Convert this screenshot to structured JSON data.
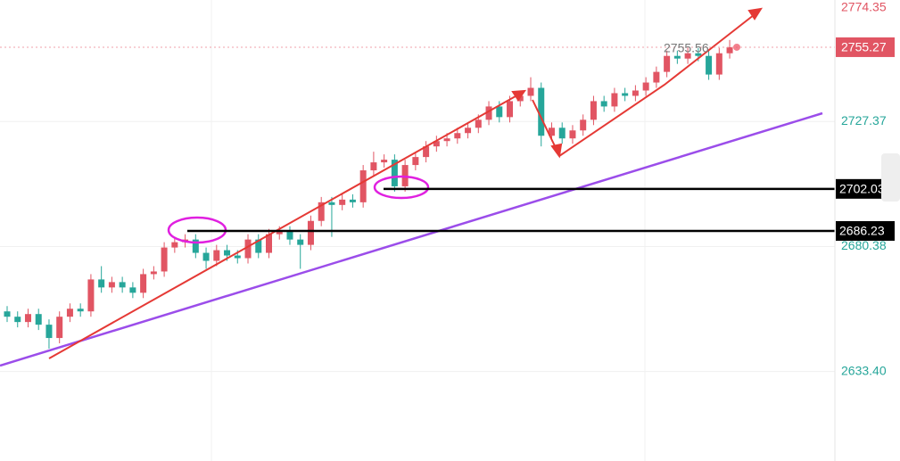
{
  "chart_data": {
    "type": "candlestick",
    "open": [
      2656,
      2654,
      2652,
      2655,
      2651,
      2646,
      2654,
      2657,
      2656,
      2668,
      2665,
      2667,
      2665,
      2663,
      2670,
      2671,
      2680,
      2682,
      2683,
      2678,
      2675,
      2679,
      2677,
      2676,
      2683,
      2678,
      2685,
      2686,
      2683,
      2681,
      2690,
      2697,
      2696,
      2698,
      2697,
      2709,
      2712,
      2713,
      2703,
      2711,
      2714,
      2718,
      2720,
      2721,
      2723,
      2725,
      2728,
      2733,
      2729,
      2735,
      2737,
      2740,
      2722,
      2725,
      2721,
      2724,
      2728,
      2735,
      2733,
      2738,
      2737,
      2739,
      2742,
      2746,
      2752,
      2751,
      2753,
      2752,
      2745,
      2753
    ],
    "high": [
      2658,
      2656,
      2657,
      2657,
      2653,
      2656,
      2659,
      2659,
      2670,
      2673,
      2669,
      2669,
      2667,
      2672,
      2673,
      2682,
      2684,
      2685,
      2685,
      2680,
      2681,
      2681,
      2679,
      2685,
      2685,
      2687,
      2688,
      2688,
      2685,
      2692,
      2699,
      2699,
      2700,
      2700,
      2711,
      2716,
      2715,
      2715,
      2713,
      2716,
      2720,
      2722,
      2723,
      2725,
      2727,
      2730,
      2735,
      2735,
      2737,
      2739,
      2744,
      2742,
      2727,
      2727,
      2726,
      2730,
      2737,
      2737,
      2740,
      2740,
      2741,
      2744,
      2748,
      2754,
      2754,
      2755,
      2755,
      2754,
      2755,
      2758
    ],
    "low": [
      2652,
      2650,
      2650,
      2649,
      2642,
      2644,
      2652,
      2654,
      2654,
      2663,
      2663,
      2663,
      2661,
      2661,
      2668,
      2669,
      2678,
      2680,
      2676,
      2672,
      2673,
      2675,
      2674,
      2674,
      2676,
      2676,
      2683,
      2681,
      2672,
      2679,
      2688,
      2684,
      2694,
      2695,
      2695,
      2707,
      2710,
      2701,
      2701,
      2709,
      2712,
      2716,
      2718,
      2719,
      2721,
      2723,
      2726,
      2727,
      2727,
      2733,
      2735,
      2718,
      2720,
      2719,
      2719,
      2722,
      2726,
      2731,
      2731,
      2735,
      2735,
      2737,
      2740,
      2744,
      2749,
      2749,
      2750,
      2743,
      2743,
      2751
    ],
    "close": [
      2654,
      2652,
      2655,
      2651,
      2646,
      2654,
      2657,
      2656,
      2668,
      2665,
      2667,
      2665,
      2663,
      2670,
      2671,
      2680,
      2682,
      2683,
      2678,
      2675,
      2679,
      2677,
      2676,
      2683,
      2678,
      2685,
      2686,
      2683,
      2681,
      2690,
      2697,
      2696,
      2698,
      2697,
      2709,
      2712,
      2713,
      2703,
      2711,
      2714,
      2718,
      2720,
      2721,
      2723,
      2725,
      2728,
      2733,
      2729,
      2735,
      2737,
      2740,
      2722,
      2725,
      2721,
      2724,
      2728,
      2735,
      2733,
      2738,
      2737,
      2739,
      2742,
      2746,
      2752,
      2751,
      2753,
      2752,
      2745,
      2753,
      2755.27
    ],
    "up_color": "#e15563",
    "down_color": "#26a69a",
    "ylim": [
      2599.78,
      2774.35
    ],
    "yticks": [
      {
        "value": 2633.4,
        "label": "2633.40"
      },
      {
        "value": 2680.38,
        "label": "2680.38"
      },
      {
        "value": 2727.37,
        "label": "2727.37"
      },
      {
        "value": 2774.35,
        "label": "2774.35"
      }
    ],
    "levels": [
      2702.03,
      2686.23
    ],
    "current_price": 2755.27,
    "high_marker": 2755.56,
    "grid": true
  }
}
